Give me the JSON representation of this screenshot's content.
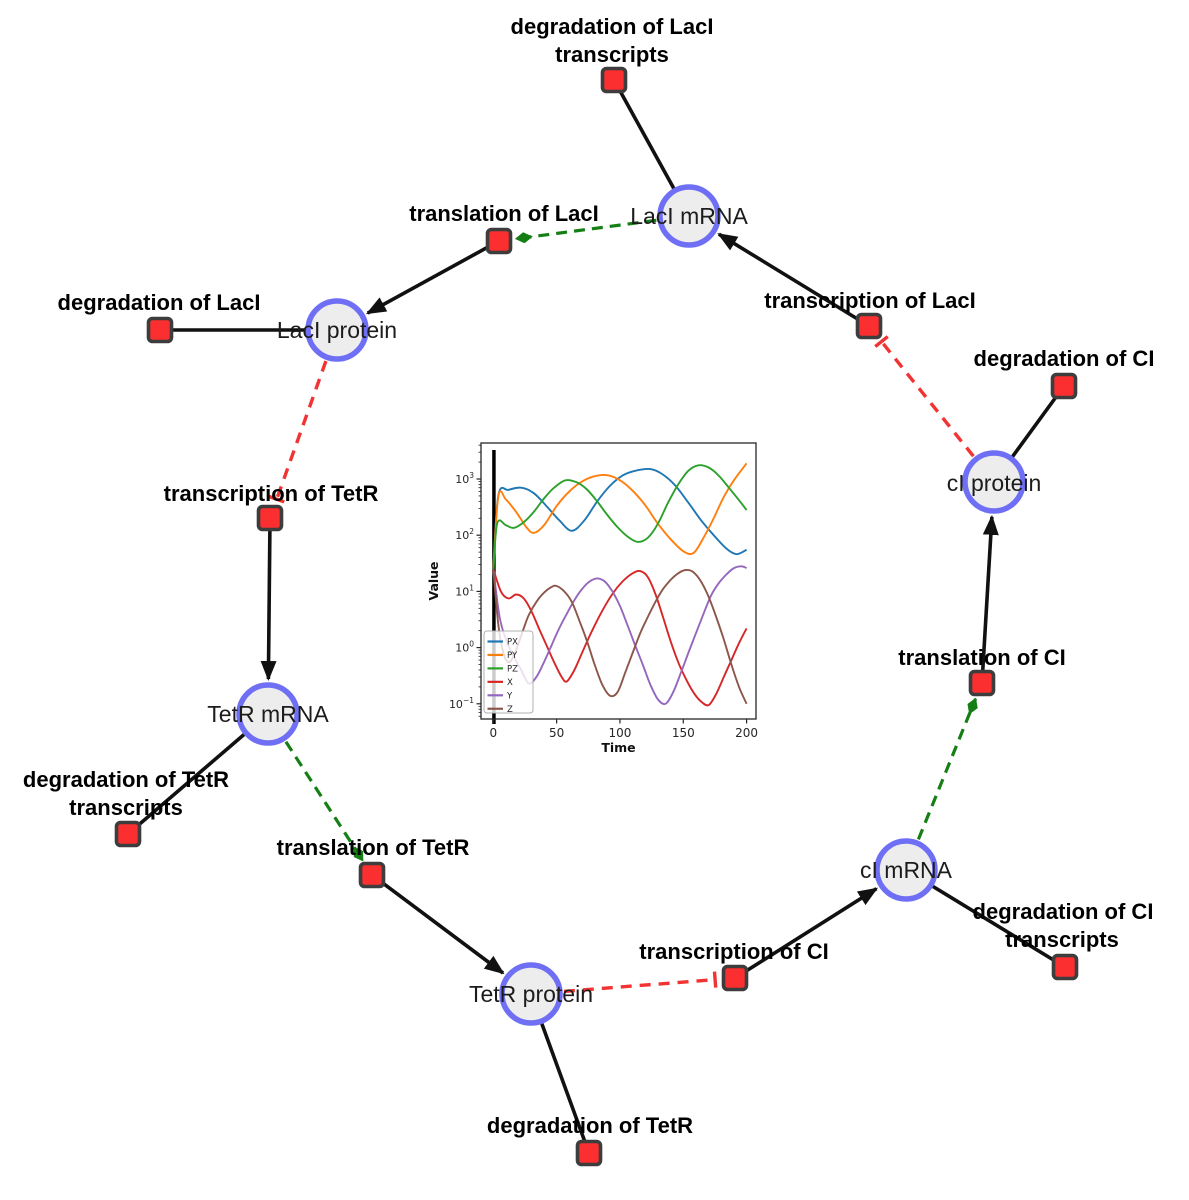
{
  "figure": {
    "description_labels": {}
  },
  "diagram": {
    "species": {
      "laci_mrna": {
        "label": "LacI mRNA"
      },
      "laci_protein": {
        "label": "LacI protein"
      },
      "ci_protein": {
        "label": "cI protein"
      },
      "tetr_mrna": {
        "label": "TetR mRNA"
      },
      "tetr_protein": {
        "label": "TetR protein"
      },
      "ci_mrna": {
        "label": "cI mRNA"
      }
    },
    "reactions": {
      "degradation_of_laci_transcripts": {
        "label_line1": "degradation of LacI",
        "label_line2": "transcripts"
      },
      "translation_of_laci": {
        "label": "translation of LacI"
      },
      "degradation_of_laci": {
        "label": "degradation of LacI"
      },
      "transcription_of_laci": {
        "label": "transcription of LacI"
      },
      "degradation_of_ci": {
        "label": "degradation of CI"
      },
      "transcription_of_tetr": {
        "label": "transcription of TetR"
      },
      "degradation_of_tetr_transcripts": {
        "label_line1": "degradation of TetR",
        "label_line2": "transcripts"
      },
      "translation_of_tetr": {
        "label": "translation of TetR"
      },
      "degradation_of_tetr": {
        "label": "degradation of TetR"
      },
      "transcription_of_ci": {
        "label": "transcription of CI"
      },
      "degradation_of_ci_transcripts": {
        "label_line1": "degradation of CI",
        "label_line2": "transcripts"
      },
      "translation_of_ci": {
        "label": "translation of CI"
      }
    },
    "colors": {
      "species_fill": "#ededed",
      "species_border": "#6f6ff5",
      "reaction_fill": "#fb2f2f",
      "reaction_border": "#3d3d3d",
      "edge_reactant_black": "#111111",
      "edge_modifier_green": "#157f15",
      "edge_inhibition_red": "#f23333"
    }
  },
  "chart_data": {
    "type": "line",
    "title": "",
    "xlabel": "Time",
    "ylabel": "Value",
    "x_ticks": [
      0,
      50,
      100,
      150,
      200
    ],
    "x_range": [
      -9.7,
      207.4
    ],
    "y_scale": "log",
    "y_tick_exponents": [
      -1,
      0,
      1,
      2,
      3
    ],
    "y_range_exponents": [
      -1.27,
      3.64
    ],
    "grid": false,
    "legend_position": "lower left",
    "event_line": {
      "x": 0.5,
      "color": "#000000"
    },
    "series": [
      {
        "name": "PX",
        "color": "#1f77b4",
        "points": [
          [
            0,
            25
          ],
          [
            4,
            520
          ],
          [
            12,
            640
          ],
          [
            22,
            700
          ],
          [
            32,
            560
          ],
          [
            42,
            330
          ],
          [
            52,
            185
          ],
          [
            62,
            120
          ],
          [
            72,
            185
          ],
          [
            82,
            400
          ],
          [
            92,
            750
          ],
          [
            102,
            1150
          ],
          [
            112,
            1400
          ],
          [
            124,
            1500
          ],
          [
            134,
            1200
          ],
          [
            144,
            750
          ],
          [
            154,
            380
          ],
          [
            164,
            185
          ],
          [
            174,
            100
          ],
          [
            184,
            58
          ],
          [
            192,
            46
          ],
          [
            200,
            55
          ]
        ]
      },
      {
        "name": "PY",
        "color": "#ff7f0e",
        "points": [
          [
            0,
            25
          ],
          [
            4,
            500
          ],
          [
            10,
            430
          ],
          [
            18,
            260
          ],
          [
            26,
            140
          ],
          [
            32,
            110
          ],
          [
            40,
            150
          ],
          [
            50,
            330
          ],
          [
            60,
            600
          ],
          [
            70,
            900
          ],
          [
            80,
            1120
          ],
          [
            90,
            1170
          ],
          [
            100,
            950
          ],
          [
            110,
            620
          ],
          [
            120,
            340
          ],
          [
            130,
            160
          ],
          [
            140,
            85
          ],
          [
            150,
            52
          ],
          [
            158,
            48
          ],
          [
            166,
            90
          ],
          [
            174,
            200
          ],
          [
            182,
            480
          ],
          [
            190,
            950
          ],
          [
            200,
            1900
          ]
        ]
      },
      {
        "name": "PZ",
        "color": "#2ca02c",
        "points": [
          [
            0,
            20
          ],
          [
            3,
            160
          ],
          [
            10,
            150
          ],
          [
            16,
            135
          ],
          [
            24,
            170
          ],
          [
            32,
            260
          ],
          [
            40,
            450
          ],
          [
            48,
            700
          ],
          [
            57,
            950
          ],
          [
            66,
            870
          ],
          [
            74,
            650
          ],
          [
            82,
            400
          ],
          [
            90,
            230
          ],
          [
            98,
            140
          ],
          [
            106,
            95
          ],
          [
            114,
            76
          ],
          [
            122,
            90
          ],
          [
            130,
            160
          ],
          [
            138,
            380
          ],
          [
            146,
            800
          ],
          [
            154,
            1400
          ],
          [
            162,
            1750
          ],
          [
            170,
            1600
          ],
          [
            178,
            1150
          ],
          [
            186,
            700
          ],
          [
            194,
            420
          ],
          [
            200,
            280
          ]
        ]
      },
      {
        "name": "X",
        "color": "#d62728",
        "points": [
          [
            0,
            25
          ],
          [
            6,
            10
          ],
          [
            12,
            7.5
          ],
          [
            18,
            8.8
          ],
          [
            24,
            7.5
          ],
          [
            30,
            4.5
          ],
          [
            36,
            2.2
          ],
          [
            42,
            1.1
          ],
          [
            48,
            0.55
          ],
          [
            54,
            0.3
          ],
          [
            58,
            0.25
          ],
          [
            64,
            0.4
          ],
          [
            70,
            0.8
          ],
          [
            78,
            2
          ],
          [
            86,
            4.5
          ],
          [
            94,
            9
          ],
          [
            102,
            15
          ],
          [
            110,
            21
          ],
          [
            116,
            23
          ],
          [
            122,
            18
          ],
          [
            128,
            9
          ],
          [
            134,
            3.5
          ],
          [
            140,
            1.3
          ],
          [
            146,
            0.55
          ],
          [
            152,
            0.28
          ],
          [
            158,
            0.16
          ],
          [
            164,
            0.11
          ],
          [
            170,
            0.095
          ],
          [
            176,
            0.15
          ],
          [
            182,
            0.3
          ],
          [
            188,
            0.6
          ],
          [
            194,
            1.2
          ],
          [
            200,
            2.2
          ]
        ]
      },
      {
        "name": "Y",
        "color": "#9467bd",
        "points": [
          [
            0,
            25
          ],
          [
            5,
            3.5
          ],
          [
            10,
            1.4
          ],
          [
            16,
            0.7
          ],
          [
            22,
            0.4
          ],
          [
            28,
            0.23
          ],
          [
            34,
            0.3
          ],
          [
            40,
            0.55
          ],
          [
            46,
            1.1
          ],
          [
            52,
            2.2
          ],
          [
            58,
            4
          ],
          [
            64,
            7
          ],
          [
            70,
            11
          ],
          [
            76,
            15
          ],
          [
            82,
            17
          ],
          [
            88,
            15
          ],
          [
            94,
            10
          ],
          [
            100,
            5.5
          ],
          [
            106,
            2.5
          ],
          [
            112,
            1.1
          ],
          [
            118,
            0.5
          ],
          [
            124,
            0.22
          ],
          [
            130,
            0.12
          ],
          [
            136,
            0.1
          ],
          [
            142,
            0.16
          ],
          [
            148,
            0.35
          ],
          [
            154,
            0.8
          ],
          [
            160,
            1.8
          ],
          [
            166,
            4
          ],
          [
            172,
            8.5
          ],
          [
            178,
            14
          ],
          [
            184,
            20
          ],
          [
            190,
            26
          ],
          [
            196,
            28
          ],
          [
            200,
            26
          ]
        ]
      },
      {
        "name": "Z",
        "color": "#8c564b",
        "points": [
          [
            0,
            25
          ],
          [
            4,
            2.5
          ],
          [
            8,
            0.8
          ],
          [
            12,
            0.55
          ],
          [
            16,
            0.7
          ],
          [
            20,
            1.2
          ],
          [
            24,
            2.2
          ],
          [
            28,
            3.8
          ],
          [
            34,
            6.5
          ],
          [
            40,
            9.5
          ],
          [
            46,
            12
          ],
          [
            50,
            12.5
          ],
          [
            56,
            10
          ],
          [
            62,
            6.5
          ],
          [
            68,
            3
          ],
          [
            74,
            1.3
          ],
          [
            80,
            0.5
          ],
          [
            86,
            0.22
          ],
          [
            92,
            0.14
          ],
          [
            98,
            0.16
          ],
          [
            104,
            0.35
          ],
          [
            110,
            0.8
          ],
          [
            116,
            1.8
          ],
          [
            122,
            3.5
          ],
          [
            128,
            6.5
          ],
          [
            134,
            11
          ],
          [
            140,
            16
          ],
          [
            146,
            21
          ],
          [
            152,
            24
          ],
          [
            158,
            22
          ],
          [
            164,
            15
          ],
          [
            170,
            8
          ],
          [
            176,
            3.5
          ],
          [
            182,
            1.4
          ],
          [
            188,
            0.5
          ],
          [
            194,
            0.2
          ],
          [
            200,
            0.1
          ]
        ]
      }
    ]
  }
}
